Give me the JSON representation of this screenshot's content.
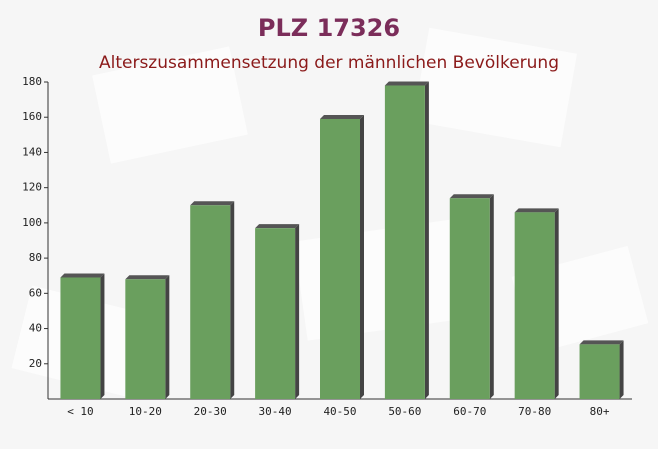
{
  "chart_data": {
    "type": "bar",
    "title": "PLZ 17326",
    "subtitle": "Alterszusammensetzung der männlichen Bevölkerung",
    "categories": [
      "< 10",
      "10-20",
      "20-30",
      "30-40",
      "40-50",
      "50-60",
      "60-70",
      "70-80",
      "80+"
    ],
    "values": [
      69,
      68,
      110,
      97,
      159,
      178,
      114,
      106,
      31
    ],
    "color": "#6a9f5e",
    "ylim": [
      0,
      180
    ],
    "yticks": [
      20,
      40,
      60,
      80,
      100,
      120,
      140,
      160,
      180
    ],
    "grid": false
  }
}
